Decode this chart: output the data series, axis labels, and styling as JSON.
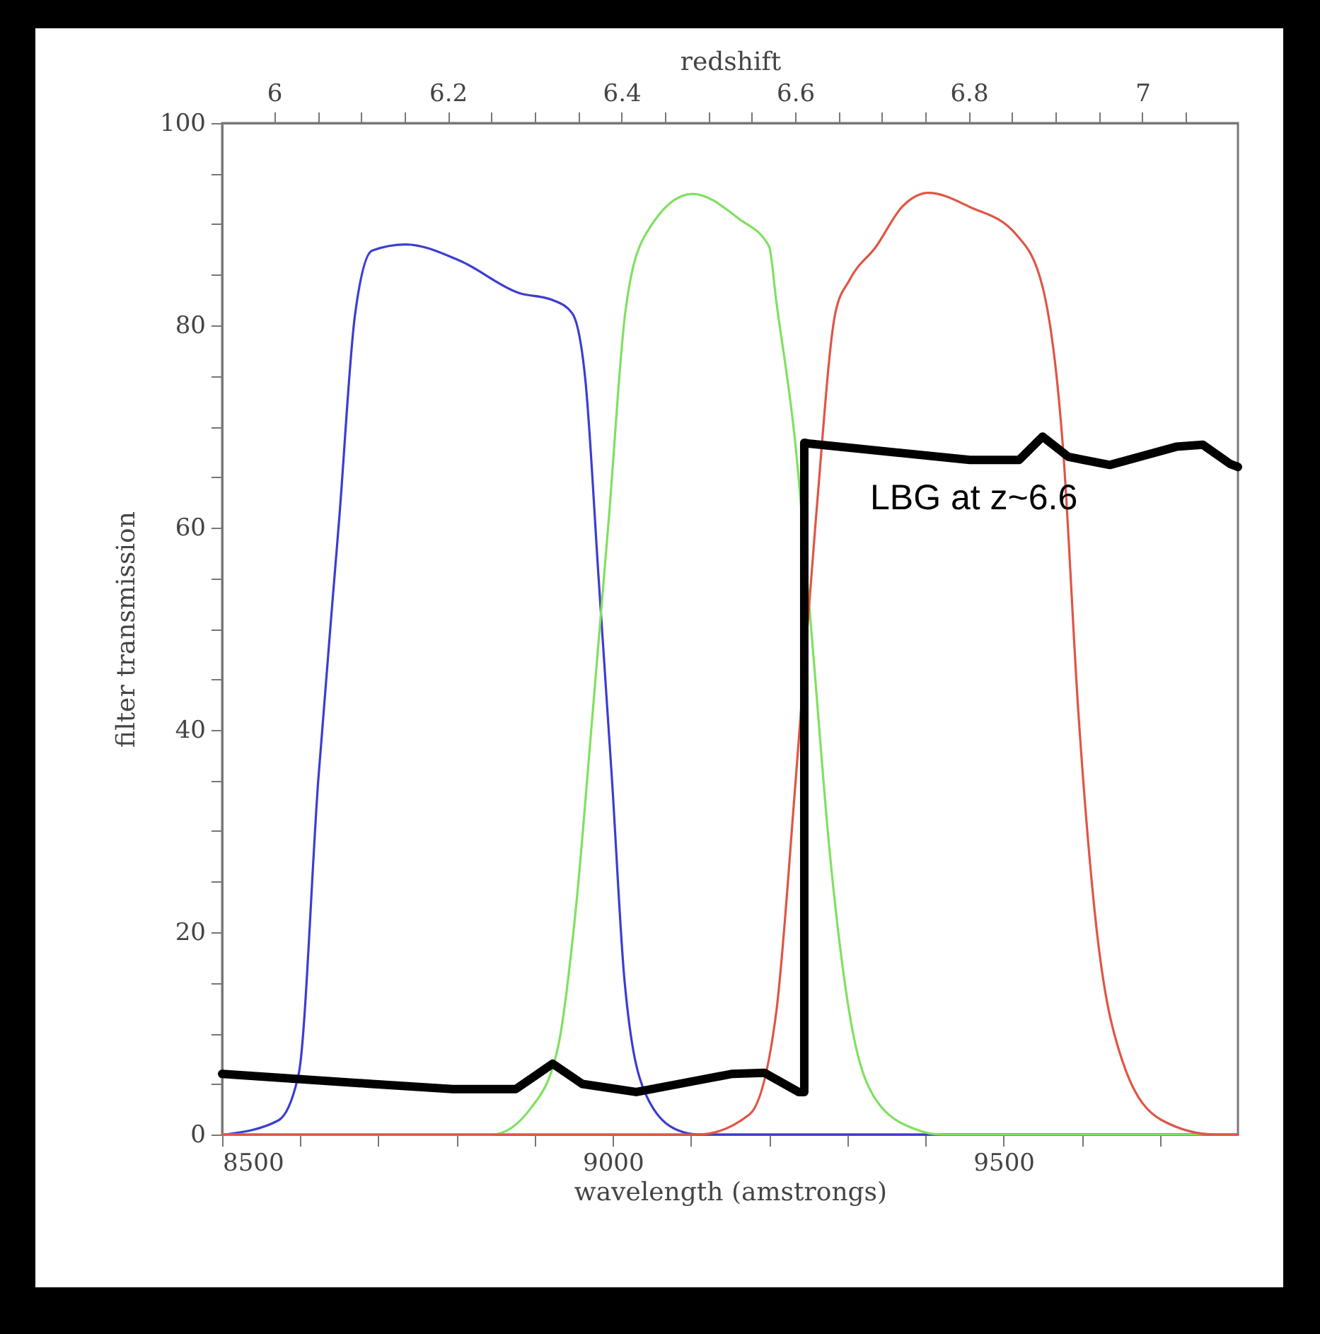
{
  "chart_data": {
    "type": "line",
    "xlabel": "wavelength (amstrongs)",
    "ylabel": "filter transmission",
    "x2label": "redshift",
    "xlim": [
      8500,
      9800
    ],
    "ylim": [
      0,
      100
    ],
    "x2lim": [
      5.94,
      7.11
    ],
    "xticks": [
      8500,
      {
        "value": 8600,
        "label": null
      },
      {
        "value": 8700,
        "label": null
      },
      {
        "value": 8800,
        "label": null
      },
      {
        "value": 8900,
        "label": null
      },
      9000,
      {
        "value": 9100,
        "label": null
      },
      {
        "value": 9200,
        "label": null
      },
      {
        "value": 9300,
        "label": null
      },
      {
        "value": 9400,
        "label": null
      },
      9500,
      {
        "value": 9600,
        "label": null
      },
      {
        "value": 9700,
        "label": null
      }
    ],
    "yticks": [
      0,
      {
        "value": 5,
        "label": null
      },
      {
        "value": 10,
        "label": null
      },
      {
        "value": 15,
        "label": null
      },
      20,
      {
        "value": 25,
        "label": null
      },
      {
        "value": 30,
        "label": null
      },
      {
        "value": 35,
        "label": null
      },
      40,
      {
        "value": 45,
        "label": null
      },
      {
        "value": 50,
        "label": null
      },
      {
        "value": 55,
        "label": null
      },
      60,
      {
        "value": 65,
        "label": null
      },
      {
        "value": 70,
        "label": null
      },
      {
        "value": 75,
        "label": null
      },
      80,
      {
        "value": 85,
        "label": null
      },
      {
        "value": 90,
        "label": null
      },
      {
        "value": 95,
        "label": null
      },
      100
    ],
    "x2ticks": [
      6,
      {
        "value": 6.05,
        "label": null
      },
      {
        "value": 6.1,
        "label": null
      },
      {
        "value": 6.15,
        "label": null
      },
      6.2,
      {
        "value": 6.25,
        "label": null
      },
      {
        "value": 6.3,
        "label": null
      },
      {
        "value": 6.35,
        "label": null
      },
      6.4,
      {
        "value": 6.45,
        "label": null
      },
      {
        "value": 6.5,
        "label": null
      },
      {
        "value": 6.55,
        "label": null
      },
      6.6,
      {
        "value": 6.65,
        "label": null
      },
      {
        "value": 6.7,
        "label": null
      },
      {
        "value": 6.75,
        "label": null
      },
      6.8,
      {
        "value": 6.85,
        "label": null
      },
      {
        "value": 6.9,
        "label": null
      },
      {
        "value": 6.95,
        "label": null
      },
      7,
      {
        "value": 7.05,
        "label": null
      }
    ],
    "series": [
      {
        "color": "#3c3cd2",
        "x": [
          8504,
          8572,
          8598,
          8623,
          8650,
          8670,
          8692,
          8735,
          8804,
          8880,
          8923,
          8948,
          8965,
          8982,
          8999,
          9015,
          9042,
          9084,
          9110,
          9800
        ],
        "values": [
          0,
          1.4,
          6,
          35,
          61,
          81,
          87.4,
          88,
          86.4,
          83.2,
          82.5,
          81.2,
          74.5,
          54.8,
          35,
          15.2,
          4,
          0.4,
          0,
          0
        ]
      },
      {
        "color": "#80e060",
        "x": [
          8500,
          8845,
          8896,
          8930,
          8952,
          8974,
          8995,
          9016,
          9042,
          9102,
          9162,
          9200,
          9209,
          9234,
          9256,
          9277,
          9303,
          9337,
          9388,
          9420,
          9800
        ],
        "values": [
          0,
          0,
          2.7,
          8.7,
          21.8,
          41.5,
          61,
          81.3,
          89,
          93,
          90.5,
          87.8,
          82.5,
          68,
          48,
          28.4,
          11.9,
          3.4,
          0.5,
          0,
          0
        ]
      },
      {
        "color": "#e05545",
        "x": [
          8500,
          9109,
          9175,
          9209,
          9234,
          9260,
          9285,
          9303,
          9337,
          9370,
          9404,
          9457,
          9516,
          9550,
          9576,
          9596,
          9617,
          9652,
          9703,
          9771,
          9800
        ],
        "values": [
          0,
          0,
          2,
          12,
          35,
          61,
          81.3,
          84.5,
          87.8,
          91.7,
          93.1,
          91.7,
          89,
          83.8,
          68,
          41.5,
          21.8,
          7.3,
          1.4,
          0,
          0
        ]
      },
      {
        "color": "#000000",
        "x": [
          8500,
          8692,
          8795,
          8876,
          8923,
          8961,
          9030,
          9153,
          9194,
          9238,
          9245,
          9245,
          9252,
          9457,
          9520,
          9550,
          9583,
          9636,
          9721,
          9755,
          9790,
          9800
        ],
        "values": [
          6,
          5,
          4.5,
          4.5,
          7,
          5,
          4.2,
          6,
          6.1,
          4.2,
          4.2,
          68.4,
          68.3,
          66.7,
          66.7,
          69,
          67,
          66.2,
          68,
          68.2,
          66.3,
          66
        ]
      }
    ],
    "annotations": [
      "LBG at z~6.6"
    ]
  }
}
